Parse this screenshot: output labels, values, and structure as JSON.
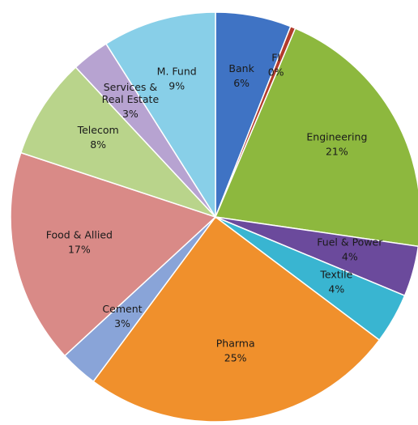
{
  "chart_data": {
    "type": "pie",
    "title": "",
    "slices": [
      {
        "name": "Bank",
        "value_label": "6%",
        "value": 6,
        "color": "#3f73c4"
      },
      {
        "name": "FI",
        "value_label": "0%",
        "value": 0.4,
        "color": "#b23b2c"
      },
      {
        "name": "Engineering",
        "value_label": "21%",
        "value": 21,
        "color": "#8db83e"
      },
      {
        "name": "Fuel & Power",
        "value_label": "4%",
        "value": 4,
        "color": "#6b4a9c"
      },
      {
        "name": "Textile",
        "value_label": "4%",
        "value": 4,
        "color": "#39b5d1"
      },
      {
        "name": "Pharma",
        "value_label": "25%",
        "value": 25,
        "color": "#f0902c"
      },
      {
        "name": "Cement",
        "value_label": "3%",
        "value": 3,
        "color": "#89a4d8"
      },
      {
        "name": "Food & Allied",
        "value_label": "17%",
        "value": 17,
        "color": "#d98a87"
      },
      {
        "name": "Telecom",
        "value_label": "8%",
        "value": 8,
        "color": "#b9d48b"
      },
      {
        "name": "Services & Real Estate",
        "value_label": "3%",
        "value": 3,
        "color": "#b7a3d1"
      },
      {
        "name": "M. Fund",
        "value_label": "9%",
        "value": 9,
        "color": "#88cfe8"
      }
    ],
    "legend": "none"
  }
}
